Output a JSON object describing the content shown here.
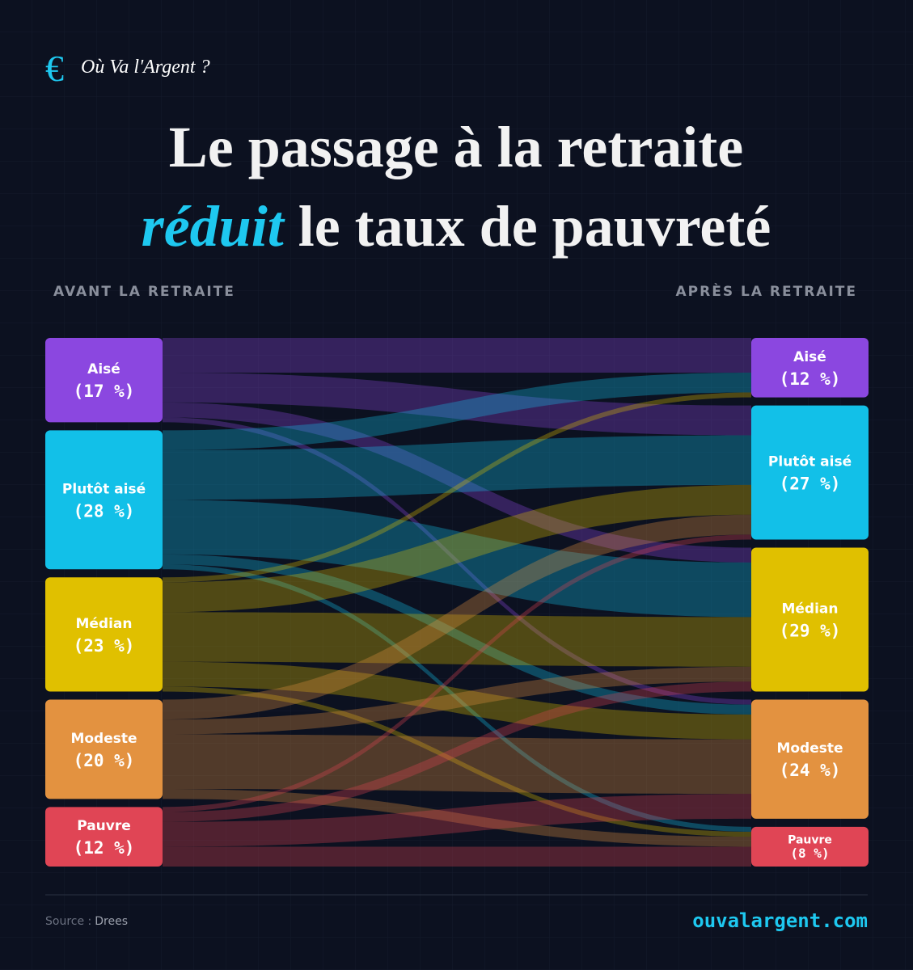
{
  "chart_data": {
    "type": "sankey",
    "brand": {
      "logo": "€",
      "name": "Où Va l'Argent ?"
    },
    "title": {
      "line1": "Le passage à la retraite",
      "emphasis": "réduit",
      "line2_rest": "le taux de pauvreté"
    },
    "left_label": "AVANT LA RETRAITE",
    "right_label": "APRÈS LA RETRAITE",
    "nodes_left": [
      {
        "name": "Aisé",
        "value": 17,
        "value_label": "(17 %)",
        "color": "#8b47e0"
      },
      {
        "name": "Plutôt aisé",
        "value": 28,
        "value_label": "(28 %)",
        "color": "#12c0e8"
      },
      {
        "name": "Médian",
        "value": 23,
        "value_label": "(23 %)",
        "color": "#e0c000"
      },
      {
        "name": "Modeste",
        "value": 20,
        "value_label": "(20 %)",
        "color": "#e39240"
      },
      {
        "name": "Pauvre",
        "value": 12,
        "value_label": "(12 %)",
        "color": "#e04555"
      }
    ],
    "nodes_right": [
      {
        "name": "Aisé",
        "value": 12,
        "value_label": "(12 %)",
        "color": "#8b47e0"
      },
      {
        "name": "Plutôt aisé",
        "value": 27,
        "value_label": "(27 %)",
        "color": "#12c0e8"
      },
      {
        "name": "Médian",
        "value": 29,
        "value_label": "(29 %)",
        "color": "#e0c000"
      },
      {
        "name": "Modeste",
        "value": 24,
        "value_label": "(24 %)",
        "color": "#e39240"
      },
      {
        "name": "Pauvre",
        "value": 8,
        "value_label": "(8 %)",
        "color": "#e04555"
      }
    ],
    "links": [
      {
        "source": 0,
        "target": 0,
        "value": 7
      },
      {
        "source": 0,
        "target": 1,
        "value": 6
      },
      {
        "source": 0,
        "target": 2,
        "value": 3
      },
      {
        "source": 0,
        "target": 3,
        "value": 1
      },
      {
        "source": 1,
        "target": 0,
        "value": 4
      },
      {
        "source": 1,
        "target": 1,
        "value": 10
      },
      {
        "source": 1,
        "target": 2,
        "value": 11
      },
      {
        "source": 1,
        "target": 3,
        "value": 2
      },
      {
        "source": 1,
        "target": 4,
        "value": 1
      },
      {
        "source": 2,
        "target": 0,
        "value": 1
      },
      {
        "source": 2,
        "target": 1,
        "value": 6
      },
      {
        "source": 2,
        "target": 2,
        "value": 10
      },
      {
        "source": 2,
        "target": 3,
        "value": 5
      },
      {
        "source": 2,
        "target": 4,
        "value": 1
      },
      {
        "source": 3,
        "target": 1,
        "value": 4
      },
      {
        "source": 3,
        "target": 2,
        "value": 3
      },
      {
        "source": 3,
        "target": 3,
        "value": 11
      },
      {
        "source": 3,
        "target": 4,
        "value": 2
      },
      {
        "source": 4,
        "target": 1,
        "value": 1
      },
      {
        "source": 4,
        "target": 2,
        "value": 2
      },
      {
        "source": 4,
        "target": 3,
        "value": 5
      },
      {
        "source": 4,
        "target": 4,
        "value": 4
      }
    ],
    "source_label": "Source :",
    "source_name": "Drees",
    "site": "ouvalargent.com"
  }
}
